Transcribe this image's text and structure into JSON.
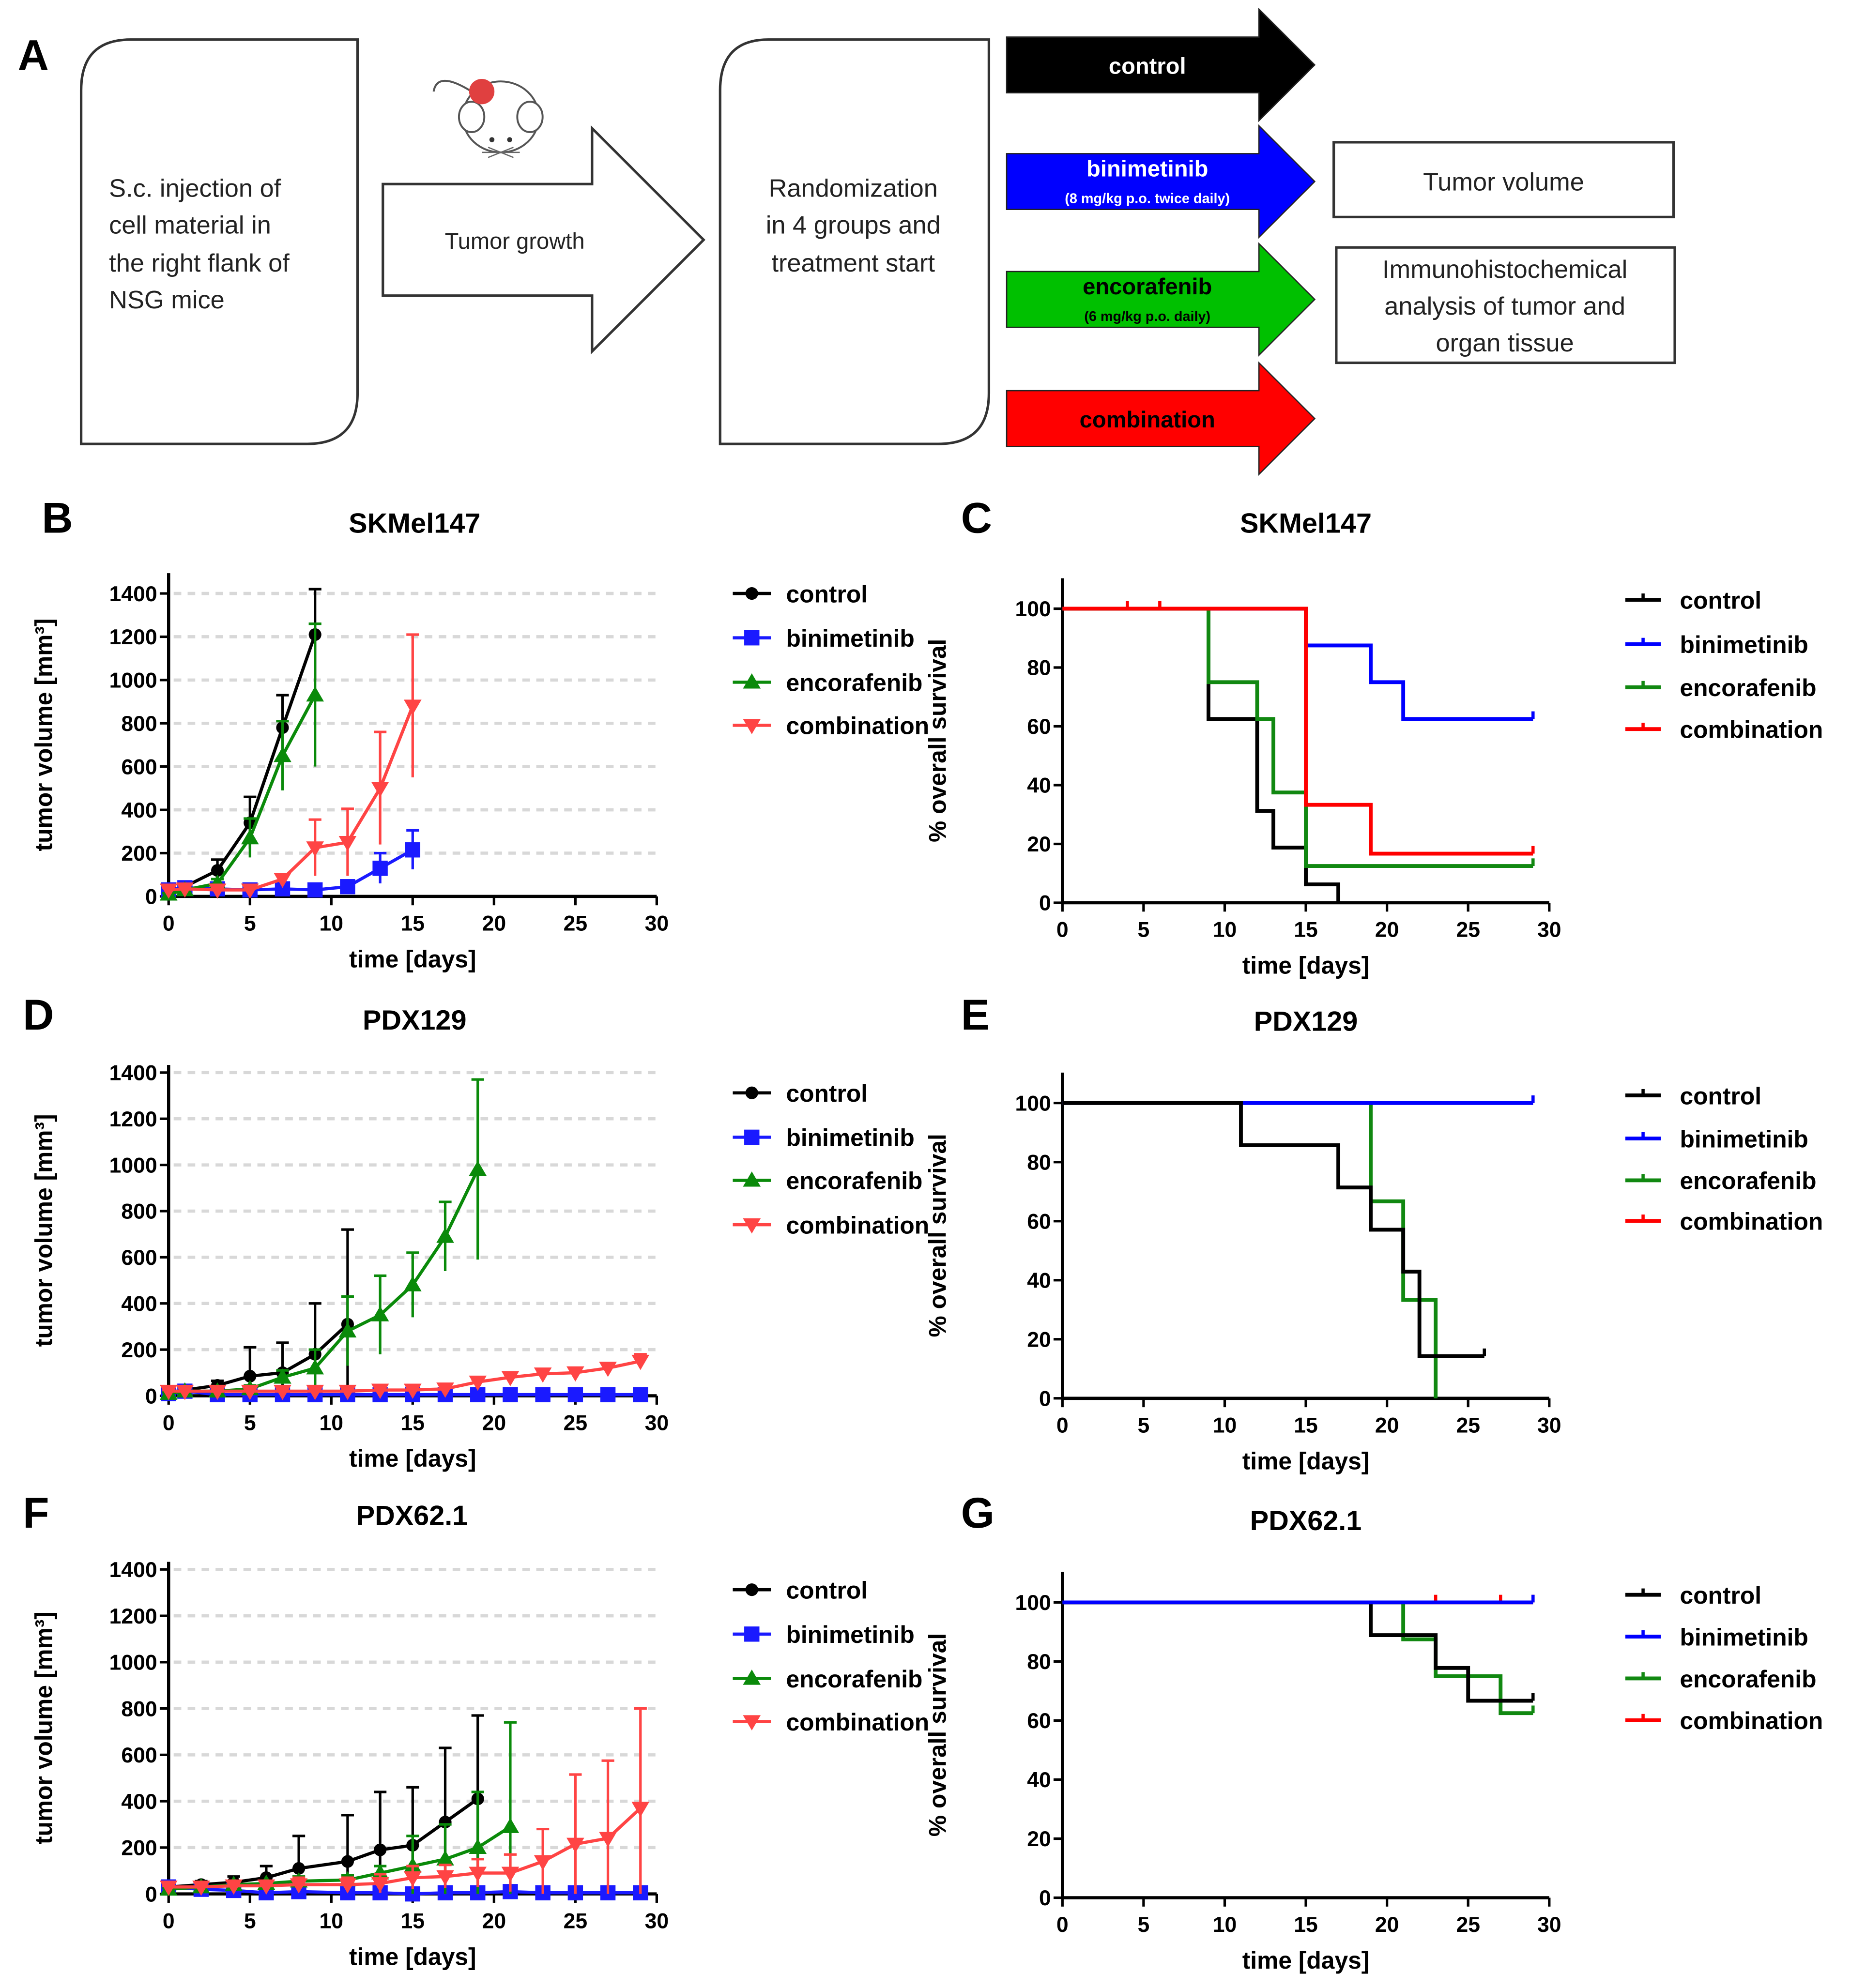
{
  "panel_labels": [
    "A",
    "B",
    "C",
    "D",
    "E",
    "F",
    "G"
  ],
  "schema": {
    "step1": [
      "S.c. injection of",
      "cell material in",
      "the right flank of",
      "NSG mice"
    ],
    "growth_arrow": "Tumor growth",
    "step2": [
      "Randomization",
      "in 4 groups and",
      "treatment start"
    ],
    "groups": [
      {
        "name": "control",
        "dose": "",
        "color": "#000000",
        "text_color": "#ffffff"
      },
      {
        "name": "binimetinib",
        "dose": "(8 mg/kg p.o. twice daily)",
        "color": "#0000ff",
        "text_color": "#ffffff"
      },
      {
        "name": "encorafenib",
        "dose": "(6 mg/kg p.o. daily)",
        "color": "#00c000",
        "text_color": "#000000"
      },
      {
        "name": "combination",
        "dose": "",
        "color": "#ff0000",
        "text_color": "#000000"
      }
    ],
    "readouts": [
      [
        "Tumor volume"
      ],
      [
        "Immunohistochemical",
        "analysis of tumor and",
        "organ tissue"
      ]
    ]
  },
  "chart_data": [
    {
      "panel": "B",
      "type": "line",
      "title": "SKMel147",
      "xlabel": "time [days]",
      "ylabel": "tumor volume [mm³]",
      "xlim": [
        0,
        30
      ],
      "ylim": [
        0,
        1400
      ],
      "xticks": [
        0,
        5,
        10,
        15,
        20,
        25,
        30
      ],
      "yticks": [
        0,
        200,
        400,
        600,
        800,
        1000,
        1200,
        1400
      ],
      "grid": "horizontal dashed",
      "legend": "right",
      "series": [
        {
          "name": "control",
          "color": "#000000",
          "marker": "circle",
          "x": [
            0,
            1,
            3,
            5,
            7,
            9
          ],
          "y": [
            20,
            45,
            120,
            340,
            780,
            1210
          ],
          "sd": [
            10,
            15,
            50,
            120,
            150,
            210
          ]
        },
        {
          "name": "binimetinib",
          "color": "#1a1aff",
          "marker": "square",
          "x": [
            0,
            1,
            3,
            5,
            7,
            9,
            11,
            13,
            15
          ],
          "y": [
            30,
            40,
            35,
            30,
            35,
            30,
            45,
            130,
            215
          ],
          "sd": [
            15,
            15,
            15,
            15,
            15,
            15,
            20,
            70,
            90
          ]
        },
        {
          "name": "encorafenib",
          "color": "#0a8a0a",
          "marker": "triangle-up",
          "x": [
            0,
            1,
            3,
            5,
            7,
            9
          ],
          "y": [
            10,
            30,
            60,
            270,
            650,
            930
          ],
          "sd": [
            5,
            10,
            20,
            90,
            160,
            330
          ]
        },
        {
          "name": "combination",
          "color": "#ff4444",
          "marker": "triangle-down",
          "x": [
            0,
            1,
            3,
            5,
            7,
            9,
            11,
            13,
            15
          ],
          "y": [
            30,
            35,
            30,
            30,
            80,
            225,
            250,
            500,
            880
          ],
          "sd": [
            10,
            10,
            10,
            10,
            20,
            130,
            155,
            260,
            330
          ]
        }
      ]
    },
    {
      "panel": "C",
      "type": "step",
      "title": "SKMel147",
      "xlabel": "time [days]",
      "ylabel": "% overall survival",
      "xlim": [
        0,
        30
      ],
      "ylim": [
        0,
        110
      ],
      "xticks": [
        0,
        5,
        10,
        15,
        20,
        25,
        30
      ],
      "yticks": [
        0,
        20,
        40,
        60,
        80,
        100
      ],
      "legend": "right",
      "series": [
        {
          "name": "control",
          "color": "#000000",
          "steps": [
            [
              0,
              100
            ],
            [
              9,
              62.5
            ],
            [
              12,
              31.25
            ],
            [
              13,
              18.75
            ],
            [
              15,
              6.25
            ],
            [
              17,
              0
            ]
          ],
          "end": 17,
          "censored": []
        },
        {
          "name": "binimetinib",
          "color": "#0000ff",
          "steps": [
            [
              0,
              100
            ],
            [
              15,
              87.5
            ],
            [
              19,
              75
            ],
            [
              21,
              62.5
            ]
          ],
          "end": 29,
          "censored": [
            29
          ]
        },
        {
          "name": "encorafenib",
          "color": "#118811",
          "steps": [
            [
              0,
              100
            ],
            [
              9,
              75
            ],
            [
              12,
              62.5
            ],
            [
              13,
              37.5
            ],
            [
              15,
              12.5
            ]
          ],
          "end": 29,
          "censored": [
            29
          ]
        },
        {
          "name": "combination",
          "color": "#ff0000",
          "steps": [
            [
              0,
              100
            ],
            [
              15,
              33.3
            ],
            [
              19,
              16.7
            ]
          ],
          "end": 29,
          "censored": [
            4,
            6,
            29
          ]
        }
      ]
    },
    {
      "panel": "D",
      "type": "line",
      "title": "PDX129",
      "xlabel": "time [days]",
      "ylabel": "tumor volume [mm³]",
      "xlim": [
        0,
        30
      ],
      "ylim": [
        0,
        1400
      ],
      "xticks": [
        0,
        5,
        10,
        15,
        20,
        25,
        30
      ],
      "yticks": [
        0,
        200,
        400,
        600,
        800,
        1000,
        1200,
        1400
      ],
      "grid": "horizontal dashed",
      "legend": "right",
      "series": [
        {
          "name": "control",
          "color": "#000000",
          "marker": "circle",
          "x": [
            0,
            1,
            3,
            5,
            7,
            9,
            11
          ],
          "y": [
            15,
            25,
            45,
            85,
            100,
            180,
            310
          ],
          "sd": [
            10,
            10,
            20,
            125,
            130,
            220,
            410
          ]
        },
        {
          "name": "binimetinib",
          "color": "#1a1aff",
          "marker": "square",
          "x": [
            0,
            1,
            3,
            5,
            7,
            9,
            11,
            13,
            15,
            17,
            19,
            21,
            23,
            25,
            27,
            29
          ],
          "y": [
            10,
            20,
            5,
            5,
            5,
            5,
            5,
            5,
            5,
            5,
            5,
            5,
            5,
            5,
            5,
            5
          ],
          "sd": [
            5,
            5,
            3,
            3,
            3,
            3,
            3,
            3,
            3,
            3,
            3,
            3,
            3,
            3,
            3,
            3
          ]
        },
        {
          "name": "encorafenib",
          "color": "#0a8a0a",
          "marker": "triangle-up",
          "x": [
            0,
            1,
            3,
            5,
            7,
            9,
            11,
            13,
            15,
            17,
            19
          ],
          "y": [
            10,
            20,
            20,
            30,
            80,
            120,
            280,
            350,
            480,
            690,
            980
          ],
          "sd": [
            5,
            5,
            10,
            15,
            30,
            80,
            150,
            170,
            140,
            150,
            390
          ]
        },
        {
          "name": "combination",
          "color": "#ff4444",
          "marker": "triangle-down",
          "x": [
            0,
            1,
            3,
            5,
            7,
            9,
            11,
            13,
            15,
            17,
            19,
            21,
            23,
            25,
            27,
            29
          ],
          "y": [
            20,
            20,
            20,
            20,
            20,
            20,
            20,
            25,
            25,
            30,
            60,
            80,
            95,
            100,
            120,
            150
          ],
          "sd": [
            5,
            5,
            5,
            5,
            5,
            5,
            5,
            5,
            5,
            8,
            10,
            10,
            10,
            10,
            15,
            30
          ]
        }
      ]
    },
    {
      "panel": "E",
      "type": "step",
      "title": "PDX129",
      "xlabel": "time [days]",
      "ylabel": "% overall survival",
      "xlim": [
        0,
        30
      ],
      "ylim": [
        0,
        110
      ],
      "xticks": [
        0,
        5,
        10,
        15,
        20,
        25,
        30
      ],
      "yticks": [
        0,
        20,
        40,
        60,
        80,
        100
      ],
      "legend": "right",
      "series": [
        {
          "name": "combination",
          "color": "#ff0000",
          "steps": [
            [
              0,
              100
            ]
          ],
          "end": 29,
          "censored": [
            29
          ]
        },
        {
          "name": "encorafenib",
          "color": "#118811",
          "steps": [
            [
              0,
              100
            ],
            [
              19,
              66.7
            ],
            [
              21,
              33.3
            ],
            [
              23,
              0
            ]
          ],
          "end": 23,
          "censored": []
        },
        {
          "name": "binimetinib",
          "color": "#0000ff",
          "steps": [
            [
              0,
              100
            ]
          ],
          "end": 29,
          "censored": [
            29
          ]
        },
        {
          "name": "control",
          "color": "#000000",
          "steps": [
            [
              0,
              100
            ],
            [
              11,
              85.7
            ],
            [
              17,
              71.4
            ],
            [
              19,
              57.1
            ],
            [
              21,
              42.9
            ],
            [
              22,
              14.3
            ]
          ],
          "end": 26,
          "censored": [
            26
          ]
        }
      ]
    },
    {
      "panel": "F",
      "type": "line",
      "title": "PDX62.1",
      "xlabel": "time [days]",
      "ylabel": "tumor volume [mm³]",
      "xlim": [
        0,
        30
      ],
      "ylim": [
        0,
        1400
      ],
      "xticks": [
        0,
        5,
        10,
        15,
        20,
        25,
        30
      ],
      "yticks": [
        0,
        200,
        400,
        600,
        800,
        1000,
        1200,
        1400
      ],
      "grid": "horizontal dashed",
      "legend": "right",
      "series": [
        {
          "name": "control",
          "color": "#000000",
          "marker": "circle",
          "x": [
            0,
            2,
            4,
            6,
            8,
            11,
            13,
            15,
            17,
            19
          ],
          "y": [
            30,
            40,
            50,
            70,
            110,
            140,
            190,
            210,
            310,
            410
          ],
          "sd": [
            10,
            15,
            25,
            50,
            140,
            200,
            250,
            250,
            320,
            360
          ]
        },
        {
          "name": "binimetinib",
          "color": "#1a1aff",
          "marker": "square",
          "x": [
            0,
            2,
            4,
            6,
            8,
            11,
            13,
            15,
            17,
            19,
            21,
            23,
            25,
            27,
            29
          ],
          "y": [
            30,
            20,
            15,
            5,
            10,
            5,
            5,
            0,
            5,
            5,
            10,
            5,
            5,
            5,
            5
          ],
          "sd": [
            10,
            8,
            8,
            5,
            5,
            5,
            5,
            3,
            5,
            5,
            5,
            5,
            5,
            5,
            5
          ]
        },
        {
          "name": "encorafenib",
          "color": "#0a8a0a",
          "marker": "triangle-up",
          "x": [
            0,
            2,
            4,
            6,
            8,
            11,
            13,
            15,
            17,
            19,
            21
          ],
          "y": [
            20,
            30,
            40,
            45,
            55,
            60,
            90,
            120,
            150,
            200,
            290
          ],
          "sd": [
            5,
            10,
            10,
            10,
            20,
            20,
            30,
            130,
            150,
            240,
            450
          ]
        },
        {
          "name": "combination",
          "color": "#ff4444",
          "marker": "triangle-down",
          "x": [
            0,
            2,
            4,
            6,
            8,
            11,
            13,
            15,
            17,
            19,
            21,
            23,
            25,
            27,
            29
          ],
          "y": [
            30,
            30,
            35,
            35,
            40,
            40,
            45,
            70,
            75,
            90,
            90,
            140,
            215,
            240,
            370
          ],
          "sd": [
            5,
            5,
            10,
            10,
            30,
            30,
            40,
            50,
            50,
            60,
            80,
            140,
            300,
            335,
            430
          ]
        }
      ]
    },
    {
      "panel": "G",
      "type": "step",
      "title": "PDX62.1",
      "xlabel": "time [days]",
      "ylabel": "% overall survival",
      "xlim": [
        0,
        30
      ],
      "ylim": [
        0,
        110
      ],
      "xticks": [
        0,
        5,
        10,
        15,
        20,
        25,
        30
      ],
      "yticks": [
        0,
        20,
        40,
        60,
        80,
        100
      ],
      "legend": "right",
      "series": [
        {
          "name": "combination",
          "color": "#ff0000",
          "steps": [
            [
              0,
              100
            ]
          ],
          "end": 29,
          "censored": [
            23,
            27,
            29
          ]
        },
        {
          "name": "encorafenib",
          "color": "#118811",
          "steps": [
            [
              0,
              100
            ],
            [
              21,
              87.5
            ],
            [
              23,
              75
            ],
            [
              27,
              62.5
            ]
          ],
          "end": 29,
          "censored": [
            29
          ]
        },
        {
          "name": "control",
          "color": "#000000",
          "steps": [
            [
              0,
              100
            ],
            [
              19,
              88.9
            ],
            [
              23,
              77.8
            ],
            [
              25,
              66.7
            ]
          ],
          "end": 29,
          "censored": [
            29
          ]
        },
        {
          "name": "binimetinib",
          "color": "#0000ff",
          "steps": [
            [
              0,
              100
            ]
          ],
          "end": 29,
          "censored": [
            29
          ]
        }
      ]
    }
  ]
}
